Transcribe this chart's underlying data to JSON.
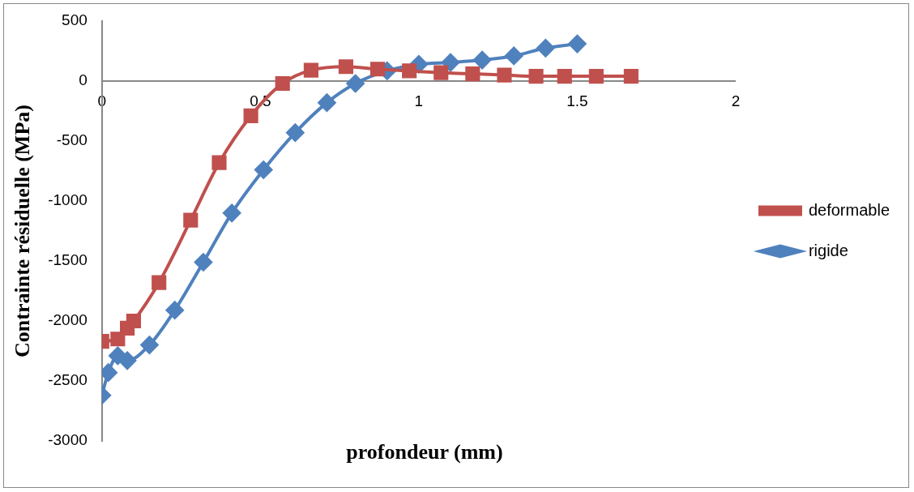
{
  "chart_data": {
    "type": "line",
    "xlabel": "profondeur (mm)",
    "ylabel": "Contrainte résiduelle (MPa)",
    "xlim": [
      0,
      2
    ],
    "xticks": [
      0,
      0.5,
      1,
      1.5,
      2
    ],
    "ylim": [
      -3000,
      500
    ],
    "yticks": [
      -3000,
      -2500,
      -2000,
      -1500,
      -1000,
      -500,
      0,
      500
    ],
    "grid": false,
    "legend": "right",
    "line_style": "solid",
    "series": [
      {
        "name": "deformable",
        "color": "#c0504d",
        "marker": "square",
        "x": [
          0,
          0.05,
          0.08,
          0.1,
          0.18,
          0.28,
          0.37,
          0.47,
          0.57,
          0.66,
          0.77,
          0.87,
          0.97,
          1.07,
          1.17,
          1.27,
          1.37,
          1.46,
          1.56,
          1.67
        ],
        "values": [
          -2170,
          -2150,
          -2060,
          -2000,
          -1680,
          -1160,
          -680,
          -290,
          -20,
          90,
          120,
          100,
          85,
          70,
          60,
          50,
          40,
          40,
          40,
          40
        ]
      },
      {
        "name": "rigide",
        "color": "#4f81bd",
        "marker": "diamond",
        "x": [
          0,
          0.02,
          0.05,
          0.08,
          0.15,
          0.23,
          0.32,
          0.41,
          0.51,
          0.61,
          0.71,
          0.8,
          0.9,
          1,
          1.1,
          1.2,
          1.3,
          1.4,
          1.5
        ],
        "values": [
          -2620,
          -2430,
          -2290,
          -2330,
          -2200,
          -1910,
          -1510,
          -1100,
          -740,
          -430,
          -180,
          -20,
          85,
          140,
          155,
          175,
          210,
          275,
          310
        ]
      }
    ]
  }
}
